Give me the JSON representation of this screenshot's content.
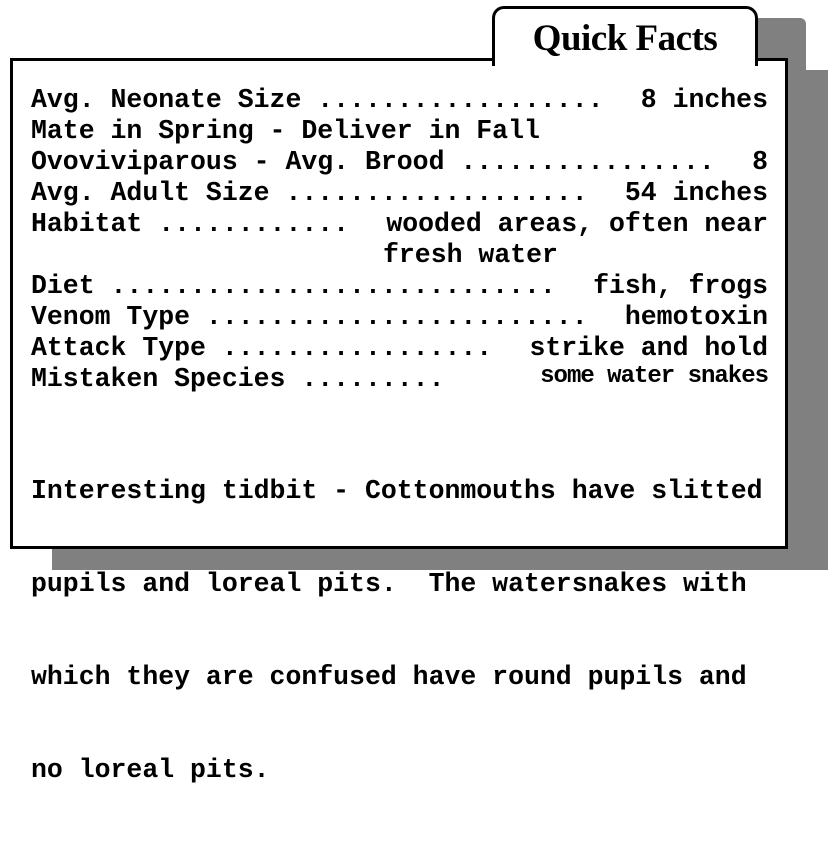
{
  "title": "Quick Facts",
  "facts": [
    {
      "label": "Avg. Neonate Size ..................",
      "value": "8 inches"
    },
    {
      "label": "Mate in Spring - Deliver in Fall",
      "value": ""
    },
    {
      "label": "Ovoviviparous - Avg. Brood ................",
      "value": "8"
    },
    {
      "label": "Avg. Adult Size ...................",
      "value": "54 inches"
    },
    {
      "label": "Habitat ............",
      "value": "wooded areas, often near",
      "value_line2": "fresh water"
    },
    {
      "label": "Diet ............................",
      "value": "fish, frogs"
    },
    {
      "label": "Venom Type ........................",
      "value": "hemotoxin"
    },
    {
      "label": "Attack Type .................",
      "value": "strike and hold"
    },
    {
      "label": "Mistaken Species .........",
      "value": "some water snakes"
    }
  ],
  "tidbit": [
    "Interesting tidbit - Cottonmouths have slitted",
    "pupils and loreal pits.  The watersnakes with",
    "which they are confused have round pupils and",
    "no loreal pits."
  ],
  "colors": {
    "shadow": "#808080",
    "border": "#000000",
    "background": "#ffffff"
  }
}
